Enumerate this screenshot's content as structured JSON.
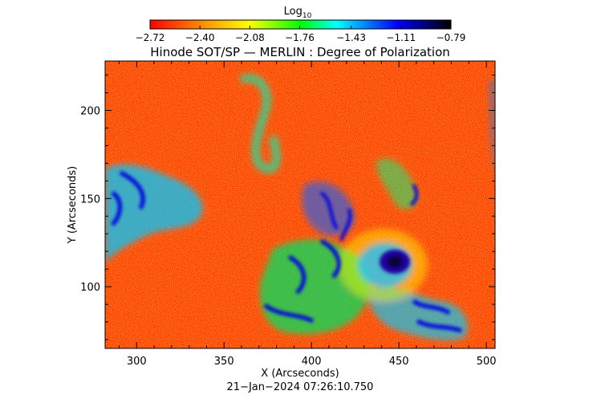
{
  "chart_data": {
    "type": "heatmap",
    "title": "Hinode SOT/SP — MERLIN : Degree of Polarization",
    "colorbar": {
      "label_base": "Log",
      "label_subscript": "10",
      "ticks": [
        "−2.72",
        "−2.40",
        "−2.08",
        "−1.76",
        "−1.43",
        "−1.11",
        "−0.79"
      ],
      "range": [
        -2.72,
        -0.79
      ],
      "colormap": [
        "#ff0000",
        "#ffaa00",
        "#ffff00",
        "#00ff00",
        "#00ffff",
        "#0000ff",
        "#000000"
      ]
    },
    "xlabel": "X (Arcseconds)",
    "ylabel": "Y (Arcseconds)",
    "x_ticks": [
      "300",
      "350",
      "400",
      "450",
      "500"
    ],
    "y_ticks": [
      "100",
      "150",
      "200"
    ],
    "xlim": [
      282,
      505
    ],
    "ylim": [
      65,
      228
    ],
    "timestamp": "21−Jan−2024 07:26:10.750"
  }
}
